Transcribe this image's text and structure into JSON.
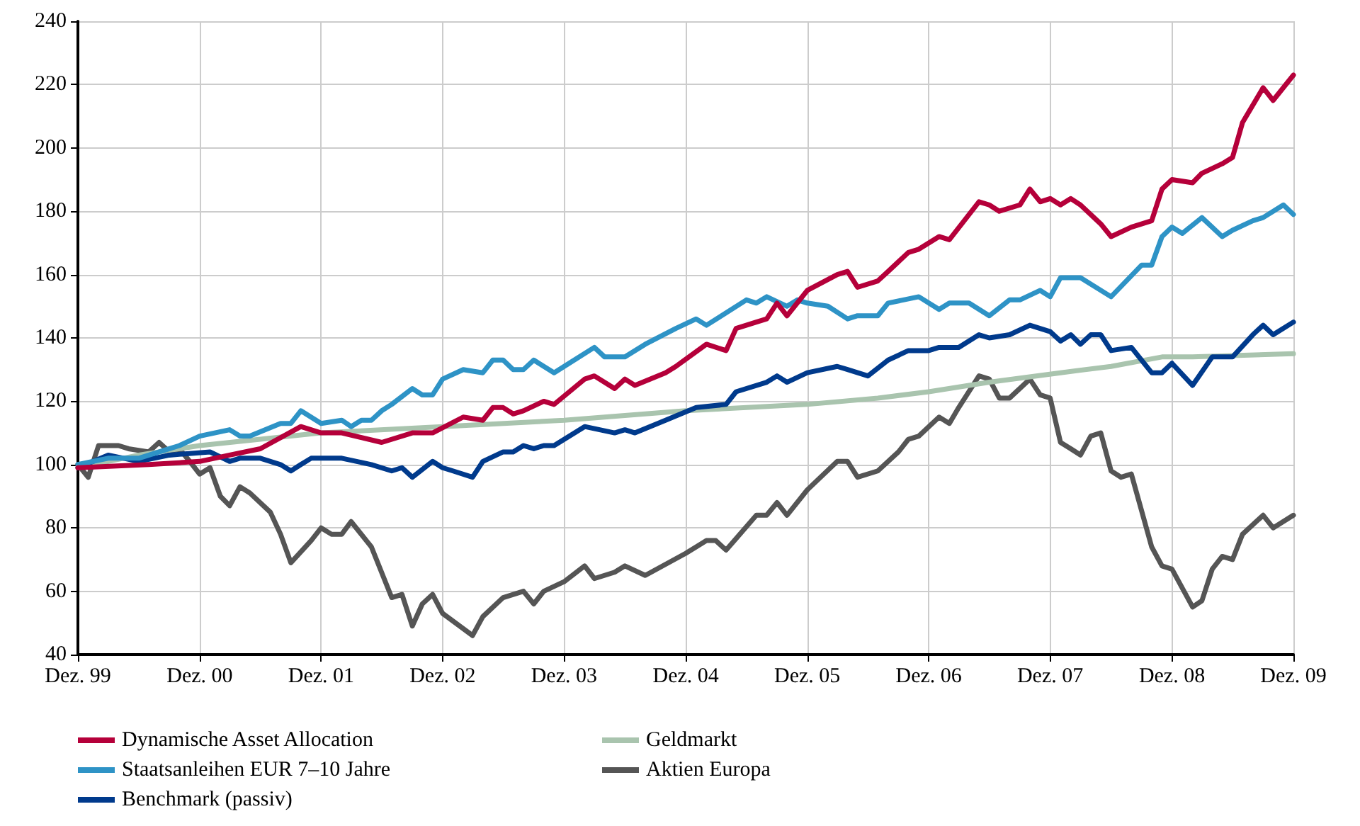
{
  "chart_data": {
    "type": "line",
    "xlim": [
      "1999-12",
      "2009-12"
    ],
    "ylim": [
      40,
      240
    ],
    "xticks": [
      {
        "value": "1999-12",
        "label": "Dez. 99"
      },
      {
        "value": "2000-12",
        "label": "Dez. 00"
      },
      {
        "value": "2001-12",
        "label": "Dez. 01"
      },
      {
        "value": "2002-12",
        "label": "Dez. 02"
      },
      {
        "value": "2003-12",
        "label": "Dez. 03"
      },
      {
        "value": "2004-12",
        "label": "Dez. 04"
      },
      {
        "value": "2005-12",
        "label": "Dez. 05"
      },
      {
        "value": "2006-12",
        "label": "Dez. 06"
      },
      {
        "value": "2007-12",
        "label": "Dez. 07"
      },
      {
        "value": "2008-12",
        "label": "Dez. 08"
      },
      {
        "value": "2009-12",
        "label": "Dez. 09"
      }
    ],
    "yticks": [
      40,
      60,
      80,
      100,
      120,
      140,
      160,
      180,
      200,
      220,
      240
    ],
    "grid": true,
    "legend": "bottom",
    "marker": "none",
    "line_style": "solid",
    "series": [
      {
        "name": "Dynamische Asset Allocation",
        "color": "#b5003a",
        "x": [
          "1999-12",
          "2000-07",
          "2000-12",
          "2001-03",
          "2001-06",
          "2001-10",
          "2001-12",
          "2002-02",
          "2002-06",
          "2002-09",
          "2002-11",
          "2003-02",
          "2003-04",
          "2003-05",
          "2003-06",
          "2003-07",
          "2003-08",
          "2003-10",
          "2003-11",
          "2004-02",
          "2004-03",
          "2004-05",
          "2004-06",
          "2004-07",
          "2004-10",
          "2004-11",
          "2005-02",
          "2005-04",
          "2005-05",
          "2005-07",
          "2005-08",
          "2005-09",
          "2005-10",
          "2005-12",
          "2006-03",
          "2006-04",
          "2006-05",
          "2006-07",
          "2006-08",
          "2006-10",
          "2006-11",
          "2007-01",
          "2007-02",
          "2007-05",
          "2007-06",
          "2007-07",
          "2007-09",
          "2007-10",
          "2007-11",
          "2007-12",
          "2008-01",
          "2008-02",
          "2008-03",
          "2008-05",
          "2008-06",
          "2008-08",
          "2008-10",
          "2008-11",
          "2008-12",
          "2009-02",
          "2009-03",
          "2009-05",
          "2009-06",
          "2009-07",
          "2009-09",
          "2009-10",
          "2009-12"
        ],
        "values": [
          99,
          100,
          101,
          103,
          105,
          112,
          110,
          110,
          107,
          110,
          110,
          115,
          114,
          118,
          118,
          116,
          117,
          120,
          119,
          127,
          128,
          124,
          127,
          125,
          129,
          131,
          138,
          136,
          143,
          145,
          146,
          151,
          147,
          155,
          160,
          161,
          156,
          158,
          161,
          167,
          168,
          172,
          171,
          183,
          182,
          180,
          182,
          187,
          183,
          184,
          182,
          184,
          182,
          176,
          172,
          175,
          177,
          187,
          190,
          189,
          192,
          195,
          197,
          208,
          219,
          215,
          223
        ]
      },
      {
        "name": "Staatsanleihen EUR 7–10 Jahre",
        "color": "#2e93c6",
        "x": [
          "1999-12",
          "2000-03",
          "2000-06",
          "2000-09",
          "2000-10",
          "2000-12",
          "2001-03",
          "2001-04",
          "2001-05",
          "2001-08",
          "2001-09",
          "2001-10",
          "2001-12",
          "2002-02",
          "2002-03",
          "2002-04",
          "2002-05",
          "2002-06",
          "2002-07",
          "2002-09",
          "2002-10",
          "2002-11",
          "2002-12",
          "2003-02",
          "2003-04",
          "2003-05",
          "2003-06",
          "2003-07",
          "2003-08",
          "2003-09",
          "2003-11",
          "2004-03",
          "2004-04",
          "2004-06",
          "2004-08",
          "2004-11",
          "2005-01",
          "2005-02",
          "2005-06",
          "2005-07",
          "2005-08",
          "2005-10",
          "2005-11",
          "2005-12",
          "2006-02",
          "2006-04",
          "2006-05",
          "2006-07",
          "2006-08",
          "2006-11",
          "2007-01",
          "2007-02",
          "2007-04",
          "2007-06",
          "2007-08",
          "2007-09",
          "2007-11",
          "2007-12",
          "2008-01",
          "2008-03",
          "2008-06",
          "2008-09",
          "2008-10",
          "2008-11",
          "2008-12",
          "2009-01",
          "2009-03",
          "2009-05",
          "2009-06",
          "2009-08",
          "2009-09",
          "2009-11",
          "2009-12"
        ],
        "values": [
          100,
          102,
          102,
          105,
          106,
          109,
          111,
          109,
          109,
          113,
          113,
          117,
          113,
          114,
          112,
          114,
          114,
          117,
          119,
          124,
          122,
          122,
          127,
          130,
          129,
          133,
          133,
          130,
          130,
          133,
          129,
          137,
          134,
          134,
          138,
          143,
          146,
          144,
          152,
          151,
          153,
          150,
          152,
          151,
          150,
          146,
          147,
          147,
          151,
          153,
          149,
          151,
          151,
          147,
          152,
          152,
          155,
          153,
          159,
          159,
          153,
          163,
          163,
          172,
          175,
          173,
          178,
          172,
          174,
          177,
          178,
          182,
          179
        ]
      },
      {
        "name": "Benchmark (passiv)",
        "color": "#003a8c",
        "x": [
          "1999-12",
          "2000-03",
          "2000-06",
          "2000-09",
          "2001-01",
          "2001-03",
          "2001-04",
          "2001-06",
          "2001-08",
          "2001-09",
          "2001-10",
          "2001-11",
          "2002-02",
          "2002-05",
          "2002-07",
          "2002-08",
          "2002-09",
          "2002-11",
          "2002-12",
          "2003-01",
          "2003-03",
          "2003-04",
          "2003-06",
          "2003-07",
          "2003-08",
          "2003-09",
          "2003-10",
          "2003-11",
          "2004-02",
          "2004-05",
          "2004-06",
          "2004-07",
          "2004-10",
          "2005-01",
          "2005-04",
          "2005-05",
          "2005-08",
          "2005-09",
          "2005-10",
          "2005-12",
          "2006-03",
          "2006-04",
          "2006-06",
          "2006-08",
          "2006-10",
          "2006-12",
          "2007-01",
          "2007-03",
          "2007-05",
          "2007-06",
          "2007-08",
          "2007-10",
          "2007-12",
          "2008-01",
          "2008-02",
          "2008-03",
          "2008-04",
          "2008-05",
          "2008-06",
          "2008-08",
          "2008-10",
          "2008-11",
          "2008-12",
          "2009-02",
          "2009-04",
          "2009-06",
          "2009-08",
          "2009-09",
          "2009-10",
          "2009-12"
        ],
        "values": [
          99,
          103,
          101,
          103,
          104,
          101,
          102,
          102,
          100,
          98,
          100,
          102,
          102,
          100,
          98,
          99,
          96,
          101,
          99,
          98,
          96,
          101,
          104,
          104,
          106,
          105,
          106,
          106,
          112,
          110,
          111,
          110,
          114,
          118,
          119,
          123,
          126,
          128,
          126,
          129,
          131,
          130,
          128,
          133,
          136,
          136,
          137,
          137,
          141,
          140,
          141,
          144,
          142,
          139,
          141,
          138,
          141,
          141,
          136,
          137,
          129,
          129,
          132,
          125,
          134,
          134,
          141,
          144,
          141,
          145
        ]
      },
      {
        "name": "Geldmarkt",
        "color": "#a9c4ae",
        "x": [
          "1999-12",
          "2000-06",
          "2000-12",
          "2001-12",
          "2002-12",
          "2003-12",
          "2004-12",
          "2005-12",
          "2006-07",
          "2006-12",
          "2007-06",
          "2008-01",
          "2008-06",
          "2008-11",
          "2009-02",
          "2009-12"
        ],
        "values": [
          99,
          103,
          106,
          110,
          112,
          114,
          117,
          119,
          121,
          123,
          126,
          129,
          131,
          134,
          134,
          135
        ]
      },
      {
        "name": "Aktien Europa",
        "color": "#555555",
        "x": [
          "1999-12",
          "2000-01",
          "2000-02",
          "2000-04",
          "2000-05",
          "2000-07",
          "2000-08",
          "2000-09",
          "2000-10",
          "2000-11",
          "2000-12",
          "2001-01",
          "2001-02",
          "2001-03",
          "2001-04",
          "2001-05",
          "2001-07",
          "2001-08",
          "2001-09",
          "2001-11",
          "2001-12",
          "2002-01",
          "2002-02",
          "2002-03",
          "2002-05",
          "2002-07",
          "2002-08",
          "2002-09",
          "2002-10",
          "2002-11",
          "2002-12",
          "2003-03",
          "2003-04",
          "2003-06",
          "2003-08",
          "2003-09",
          "2003-10",
          "2003-12",
          "2004-02",
          "2004-03",
          "2004-05",
          "2004-06",
          "2004-08",
          "2004-12",
          "2005-02",
          "2005-03",
          "2005-04",
          "2005-07",
          "2005-08",
          "2005-09",
          "2005-10",
          "2005-12",
          "2006-03",
          "2006-04",
          "2006-05",
          "2006-07",
          "2006-09",
          "2006-10",
          "2006-11",
          "2007-01",
          "2007-02",
          "2007-03",
          "2007-05",
          "2007-06",
          "2007-07",
          "2007-08",
          "2007-10",
          "2007-11",
          "2007-12",
          "2008-01",
          "2008-02",
          "2008-03",
          "2008-04",
          "2008-05",
          "2008-06",
          "2008-07",
          "2008-08",
          "2008-10",
          "2008-11",
          "2008-12",
          "2009-02",
          "2009-03",
          "2009-04",
          "2009-05",
          "2009-06",
          "2009-07",
          "2009-09",
          "2009-10",
          "2009-12"
        ],
        "values": [
          100,
          96,
          106,
          106,
          105,
          104,
          107,
          104,
          105,
          101,
          97,
          99,
          90,
          87,
          93,
          91,
          85,
          78,
          69,
          76,
          80,
          78,
          78,
          82,
          74,
          58,
          59,
          49,
          56,
          59,
          53,
          46,
          52,
          58,
          60,
          56,
          60,
          63,
          68,
          64,
          66,
          68,
          65,
          72,
          76,
          76,
          73,
          84,
          84,
          88,
          84,
          92,
          101,
          101,
          96,
          98,
          104,
          108,
          109,
          115,
          113,
          118,
          128,
          127,
          121,
          121,
          127,
          122,
          121,
          107,
          105,
          103,
          109,
          110,
          98,
          96,
          97,
          74,
          68,
          67,
          55,
          57,
          67,
          71,
          70,
          78,
          84,
          80,
          84
        ]
      }
    ]
  }
}
